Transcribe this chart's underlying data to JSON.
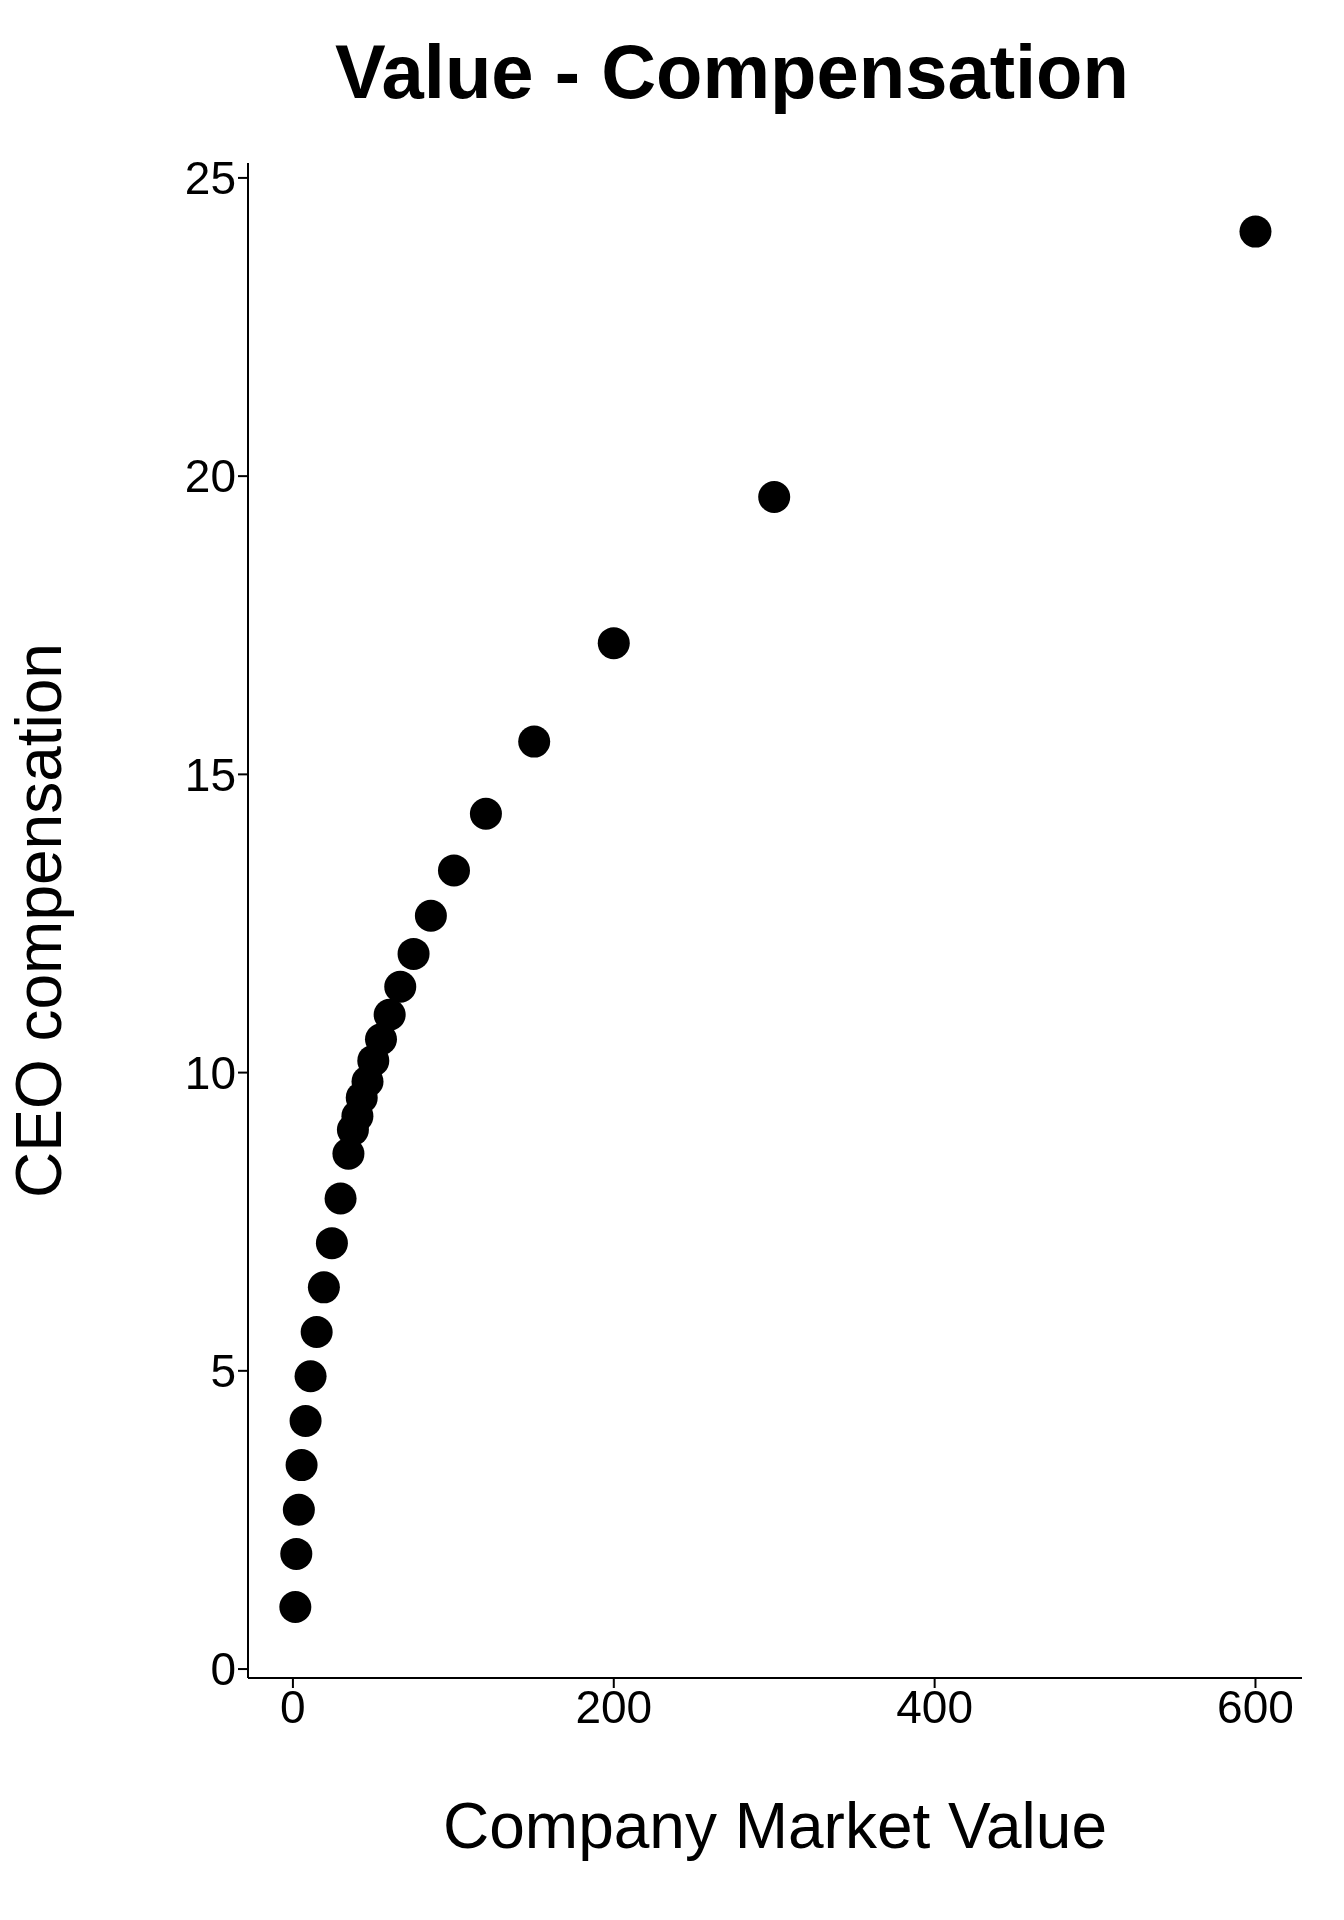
{
  "chart_data": {
    "type": "scatter",
    "title": "Value - Compensation",
    "xlabel": "Company Market Value",
    "ylabel": "CEO compensation",
    "x": [
      1.5,
      2.1,
      3.7,
      5.4,
      7.9,
      11,
      14.8,
      19.3,
      24.3,
      29.7,
      34.6,
      37.4,
      40.2,
      42.9,
      46.5,
      50.1,
      54.9,
      60.3,
      66.9,
      75.2,
      86,
      100.4,
      120.3,
      150.4,
      200,
      300,
      600
    ],
    "values": [
      1.04,
      1.93,
      2.67,
      3.42,
      4.16,
      4.91,
      5.65,
      6.4,
      7.14,
      7.89,
      8.64,
      9.04,
      9.27,
      9.58,
      9.85,
      10.2,
      10.56,
      10.97,
      11.44,
      11.99,
      12.63,
      13.39,
      14.34,
      15.55,
      17.2,
      19.65,
      24.1
    ],
    "color": "#000000",
    "marker": "circle",
    "xlim": [
      -28,
      629
    ],
    "ylim": [
      -0.15,
      25.25
    ],
    "xticks": [
      0,
      200,
      400,
      600
    ],
    "yticks": [
      0,
      5,
      10,
      15,
      20,
      25
    ]
  }
}
